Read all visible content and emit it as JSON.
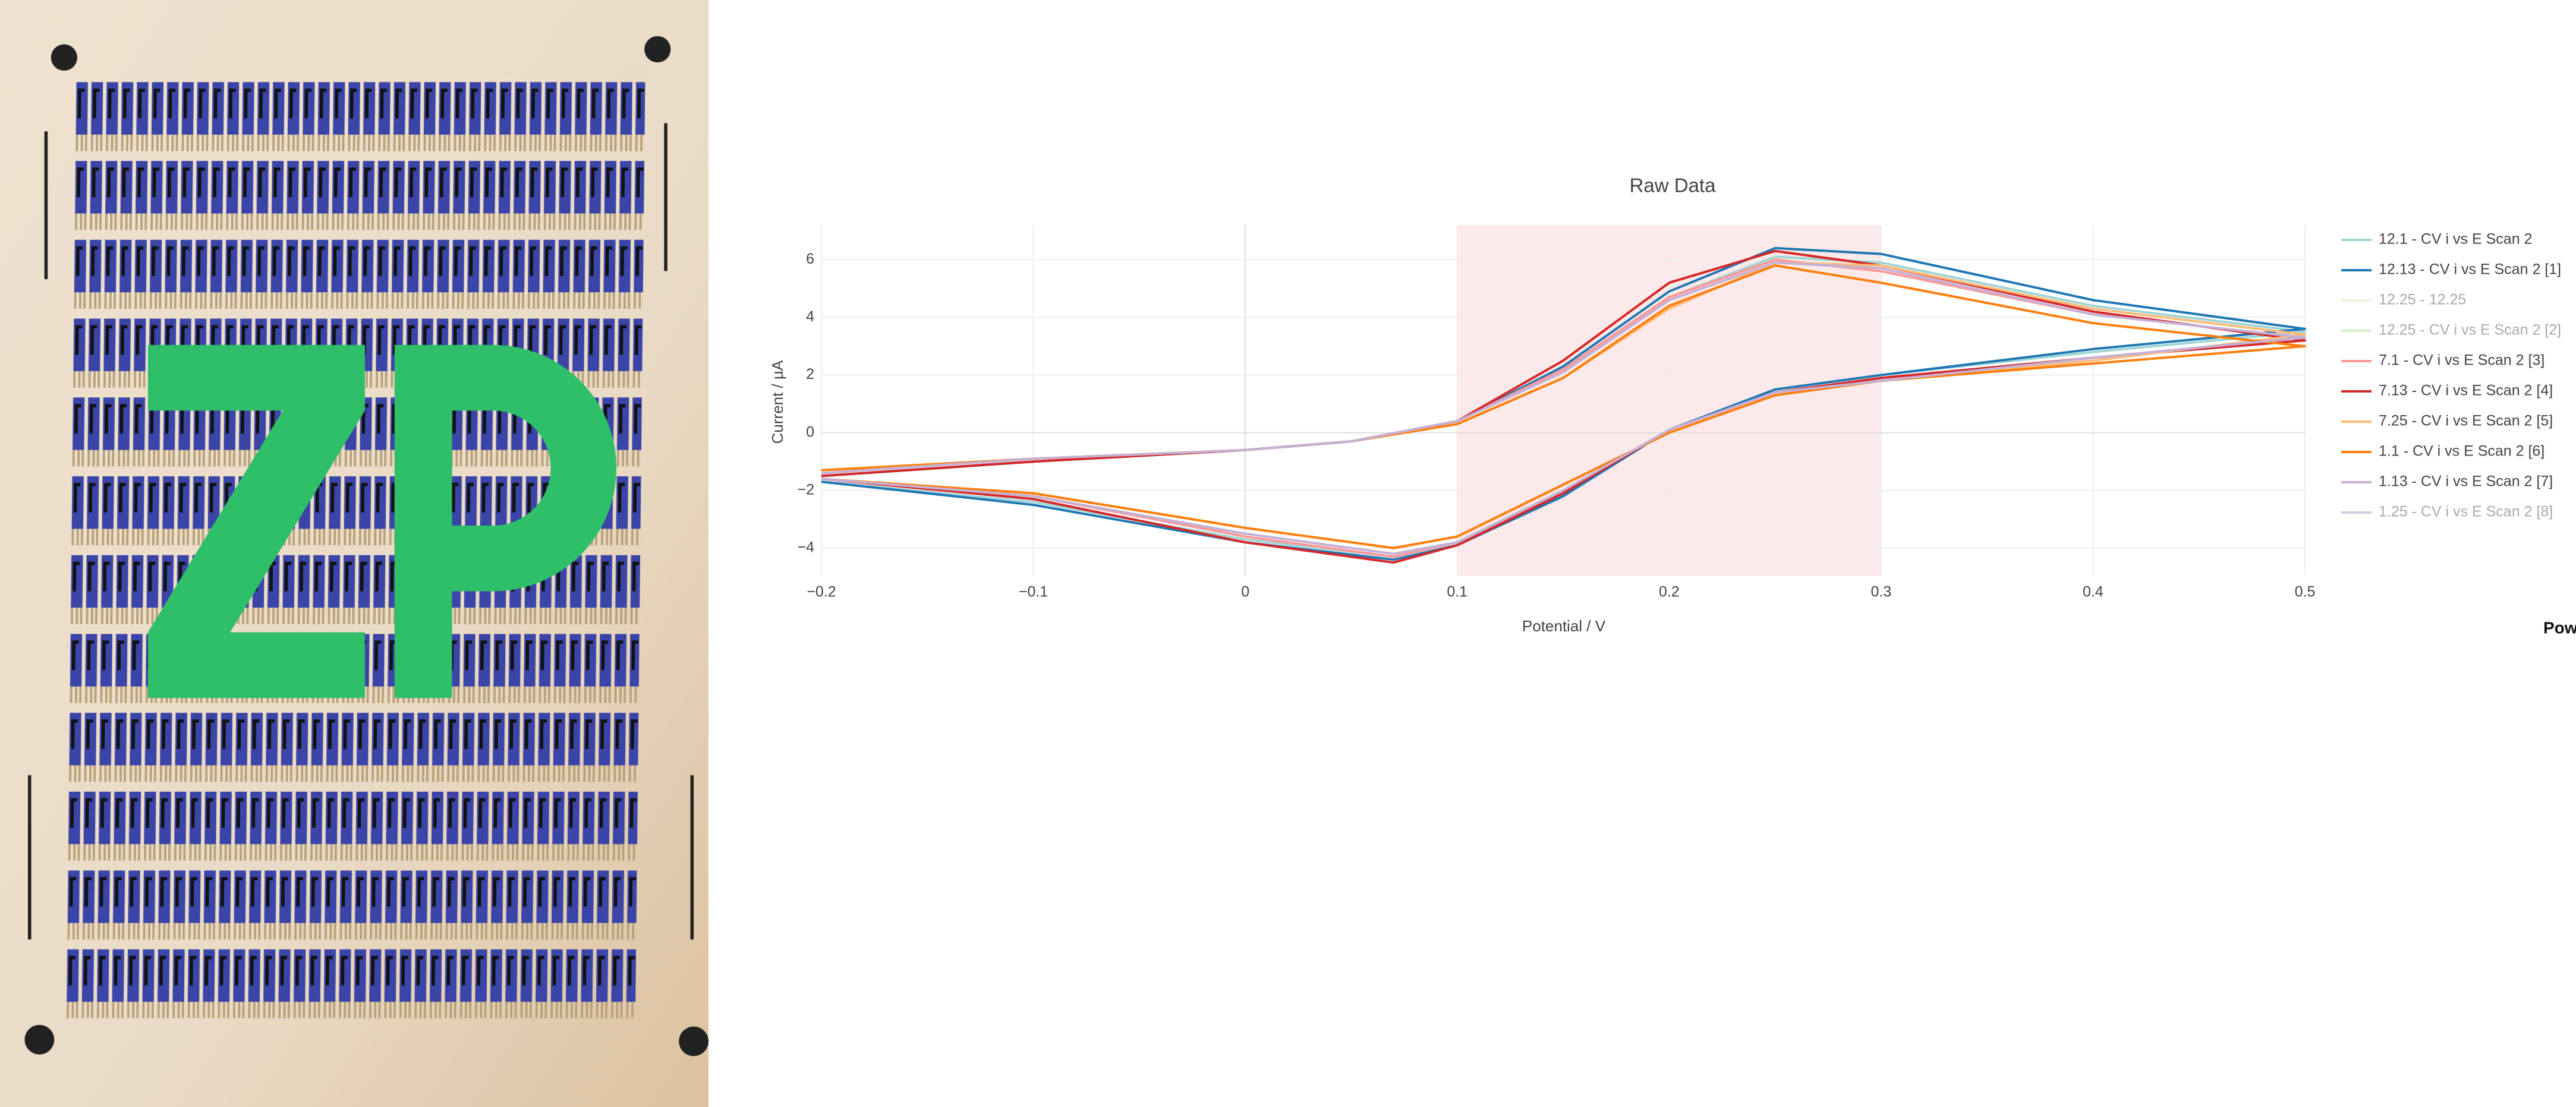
{
  "chart_data": {
    "type": "line",
    "title": "Raw Data",
    "x_label": "Potential / V",
    "y_label": "Current / µA",
    "footer_text": "Pow",
    "highlight": [
      0.1,
      0.3
    ],
    "highlight_color": "#fbe3e3",
    "grid": true,
    "legend": "right",
    "xlim": [
      -0.2,
      0.5
    ],
    "ylim": [
      -4.97,
      7.2
    ],
    "xticks": [
      {
        "value": -0.2,
        "label": "−0.2"
      },
      {
        "value": -0.1,
        "label": "−0.1"
      },
      0,
      0.1,
      0.2,
      0.3,
      0.4,
      0.5
    ],
    "yticks": [
      {
        "value": -4,
        "label": "−4"
      },
      {
        "value": -2,
        "label": "−2"
      },
      0,
      2,
      4,
      6
    ],
    "x": [
      -0.2,
      -0.1,
      0,
      0.05,
      0.1,
      0.15,
      0.2,
      0.25,
      0.3,
      0.4,
      0.5,
      0.4,
      0.3,
      0.25,
      0.2,
      0.15,
      0.1,
      0.07,
      0,
      -0.1,
      -0.2
    ],
    "series": [
      {
        "name": "12.1 - CV i vs E Scan 2",
        "color": "#9fd5d5",
        "visible": true,
        "values": [
          -1.5,
          -1.0,
          -0.6,
          -0.3,
          0.4,
          2.2,
          4.7,
          6.1,
          5.9,
          4.4,
          3.5,
          2.8,
          2.0,
          1.5,
          0.1,
          -2.1,
          -3.8,
          -4.3,
          -3.7,
          -2.4,
          -1.7
        ]
      },
      {
        "name": "12.13 - CV i vs E Scan 2 [1]",
        "color": "#1f77b4",
        "visible": true,
        "values": [
          -1.5,
          -1.0,
          -0.6,
          -0.3,
          0.4,
          2.3,
          4.9,
          6.4,
          6.2,
          4.6,
          3.6,
          2.9,
          2.0,
          1.5,
          0.1,
          -2.2,
          -3.9,
          -4.4,
          -3.8,
          -2.5,
          -1.7
        ]
      },
      {
        "name": "12.25 - 12.25",
        "color": "#e8e0b0",
        "visible": false
      },
      {
        "name": "12.25 - CV i vs E Scan 2 [2]",
        "color": "#98df8a",
        "visible": false
      },
      {
        "name": "7.1 - CV i vs E Scan 2 [3]",
        "color": "#ff9896",
        "visible": true,
        "values": [
          -1.4,
          -0.9,
          -0.6,
          -0.3,
          0.4,
          2.2,
          4.7,
          6.0,
          5.6,
          4.1,
          3.3,
          2.6,
          1.8,
          1.4,
          0.1,
          -2.0,
          -3.8,
          -4.3,
          -3.6,
          -2.2,
          -1.6
        ]
      },
      {
        "name": "7.13 - CV i vs E Scan 2 [4]",
        "color": "#d62728",
        "visible": true,
        "values": [
          -1.5,
          -1.0,
          -0.6,
          -0.3,
          0.4,
          2.5,
          5.2,
          6.3,
          5.8,
          4.2,
          3.2,
          2.6,
          1.9,
          1.4,
          0.1,
          -2.1,
          -3.9,
          -4.5,
          -3.8,
          -2.3,
          -1.6
        ]
      },
      {
        "name": "7.25 - CV i vs E Scan 2 [5]",
        "color": "#ffbb78",
        "visible": true,
        "values": [
          -1.4,
          -0.9,
          -0.6,
          -0.3,
          0.3,
          1.9,
          4.3,
          5.9,
          5.8,
          4.3,
          3.4,
          2.5,
          1.8,
          1.3,
          0.0,
          -1.8,
          -3.6,
          -4.0,
          -3.3,
          -2.1,
          -1.6
        ]
      },
      {
        "name": "1.1 - CV i vs E Scan 2 [6]",
        "color": "#ff7f0e",
        "visible": true,
        "values": [
          -1.3,
          -0.9,
          -0.6,
          -0.3,
          0.3,
          1.9,
          4.4,
          5.8,
          5.2,
          3.8,
          3.0,
          2.4,
          1.8,
          1.3,
          0.0,
          -1.8,
          -3.6,
          -4.0,
          -3.3,
          -2.1,
          -1.6
        ]
      },
      {
        "name": "1.13 - CV i vs E Scan 2 [7]",
        "color": "#c5b0d5",
        "visible": true,
        "values": [
          -1.4,
          -0.9,
          -0.6,
          -0.3,
          0.4,
          2.1,
          4.6,
          5.9,
          5.7,
          4.1,
          3.3,
          2.6,
          1.8,
          1.4,
          0.1,
          -2.0,
          -3.8,
          -4.2,
          -3.5,
          -2.2,
          -1.6
        ]
      },
      {
        "name": "1.25 - CV i vs E Scan 2 [8]",
        "color": "#9c8eb5",
        "visible": false
      }
    ]
  }
}
